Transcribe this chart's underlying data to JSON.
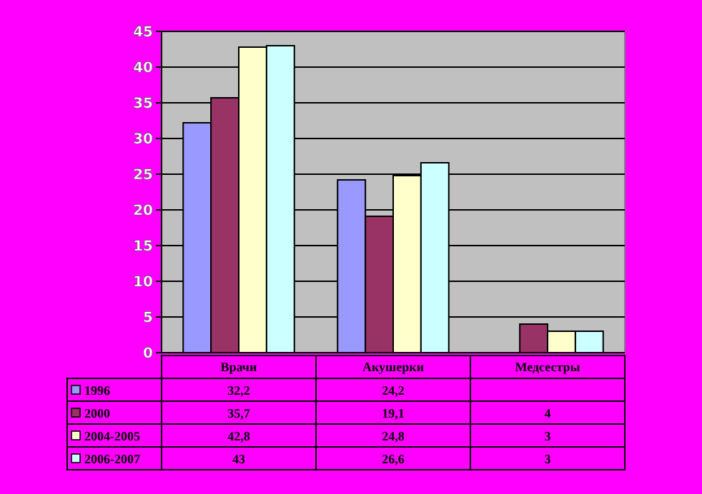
{
  "chart_data": {
    "type": "bar",
    "categories": [
      "Врачи",
      "Акушерки",
      "Медсестры"
    ],
    "series": [
      {
        "name": "1996",
        "color": "#9999ff",
        "values": [
          32.2,
          24.2,
          null
        ],
        "value_labels": [
          "32,2",
          "24,2",
          null
        ]
      },
      {
        "name": "2000",
        "color": "#993366",
        "values": [
          35.7,
          19.1,
          4
        ],
        "value_labels": [
          "35,7",
          "19,1",
          "4"
        ]
      },
      {
        "name": "2004-2005",
        "color": "#ffffcc",
        "values": [
          42.8,
          24.8,
          3
        ],
        "value_labels": [
          "42,8",
          "24,8",
          "3"
        ]
      },
      {
        "name": "2006-2007",
        "color": "#ccffff",
        "values": [
          43,
          26.6,
          3
        ],
        "value_labels": [
          "43",
          "26,6",
          "3"
        ]
      }
    ],
    "ylim": [
      0,
      45
    ],
    "yticks": [
      0,
      5,
      10,
      15,
      20,
      25,
      30,
      35,
      40,
      45
    ],
    "grid": "y",
    "legend": "bottom"
  }
}
